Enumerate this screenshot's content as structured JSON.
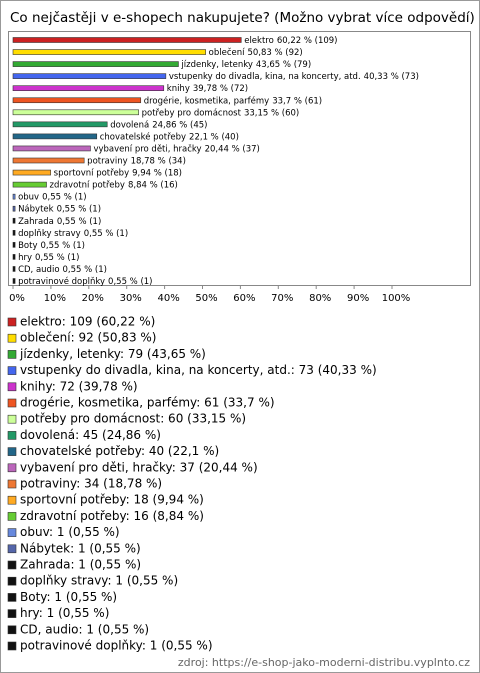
{
  "chart_data": {
    "type": "bar",
    "orientation": "horizontal",
    "title": "Co nejčastěji v e-shopech nakupujete? (Možno vybrat více odpovědí)",
    "categories": [
      "elektro",
      "oblečení",
      "jízdenky, letenky",
      "vstupenky do divadla, kina, na koncerty, atd.",
      "knihy",
      "drogérie, kosmetika, parfémy",
      "potřeby pro domácnost",
      "dovolená",
      "chovatelské potřeby",
      "vybavení pro děti, hračky",
      "potraviny",
      "sportovní potřeby",
      "zdravotní potřeby",
      "obuv",
      "Nábytek",
      "Zahrada",
      "doplňky stravy",
      "Boty",
      "hry",
      "CD, audio",
      "potravinové doplňky"
    ],
    "values": [
      60.22,
      50.83,
      43.65,
      40.33,
      39.78,
      33.7,
      33.15,
      24.86,
      22.1,
      20.44,
      18.78,
      9.94,
      8.84,
      0.55,
      0.55,
      0.55,
      0.55,
      0.55,
      0.55,
      0.55,
      0.55
    ],
    "value_labels": [
      "60,22 % (109)",
      "50,83 % (92)",
      "43,65 % (79)",
      "40,33 % (73)",
      "39,78 % (72)",
      "33,7 % (61)",
      "33,15 % (60)",
      "24,86 % (45)",
      "22,1 % (40)",
      "20,44 % (37)",
      "18,78 % (34)",
      "9,94 % (18)",
      "8,84 % (16)",
      "0,55 % (1)",
      "0,55 % (1)",
      "0,55 % (1)",
      "0,55 % (1)",
      "0,55 % (1)",
      "0,55 % (1)",
      "0,55 % (1)",
      "0,55 % (1)"
    ],
    "colors": [
      "#cc2222",
      "#ffdd00",
      "#33aa33",
      "#4466ee",
      "#cc33cc",
      "#ee5522",
      "#ccff99",
      "#229966",
      "#226688",
      "#bb66bb",
      "#ee7733",
      "#ffaa22",
      "#66cc33",
      "#6688dd",
      "#5566aa",
      "#111111",
      "#111111",
      "#111111",
      "#111111",
      "#111111",
      "#111111"
    ],
    "legend": [
      "elektro: 109 (60,22 %)",
      "oblečení: 92 (50,83 %)",
      "jízdenky, letenky: 79 (43,65 %)",
      "vstupenky do divadla, kina, na koncerty, atd.: 73 (40,33 %)",
      "knihy: 72 (39,78 %)",
      "drogérie, kosmetika, parfémy: 61 (33,7 %)",
      "potřeby pro domácnost: 60 (33,15 %)",
      "dovolená: 45 (24,86 %)",
      "chovatelské potřeby: 40 (22,1 %)",
      "vybavení pro děti, hračky: 37 (20,44 %)",
      "potraviny: 34 (18,78 %)",
      "sportovní potřeby: 18 (9,94 %)",
      "zdravotní potřeby: 16 (8,84 %)",
      "obuv: 1 (0,55 %)",
      "Nábytek: 1 (0,55 %)",
      "Zahrada: 1 (0,55 %)",
      "doplňky stravy: 1 (0,55 %)",
      "Boty: 1 (0,55 %)",
      "hry: 1 (0,55 %)",
      "CD, audio: 1 (0,55 %)",
      "potravinové doplňky: 1 (0,55 %)"
    ],
    "xlim": [
      0,
      100
    ],
    "xticks": [
      {
        "value": 0,
        "label": "0%"
      },
      {
        "value": 10,
        "label": "10%"
      },
      {
        "value": 20,
        "label": "20%"
      },
      {
        "value": 30,
        "label": "30%"
      },
      {
        "value": 40,
        "label": "40%"
      },
      {
        "value": 50,
        "label": "50%"
      },
      {
        "value": 60,
        "label": "60%"
      },
      {
        "value": 70,
        "label": "70%"
      },
      {
        "value": 80,
        "label": "80%"
      },
      {
        "value": 90,
        "label": "90%"
      },
      {
        "value": 100,
        "label": "100%"
      }
    ],
    "source": "zdroj: https://e-shop-jako-moderni-distribu.vyplnto.cz"
  }
}
